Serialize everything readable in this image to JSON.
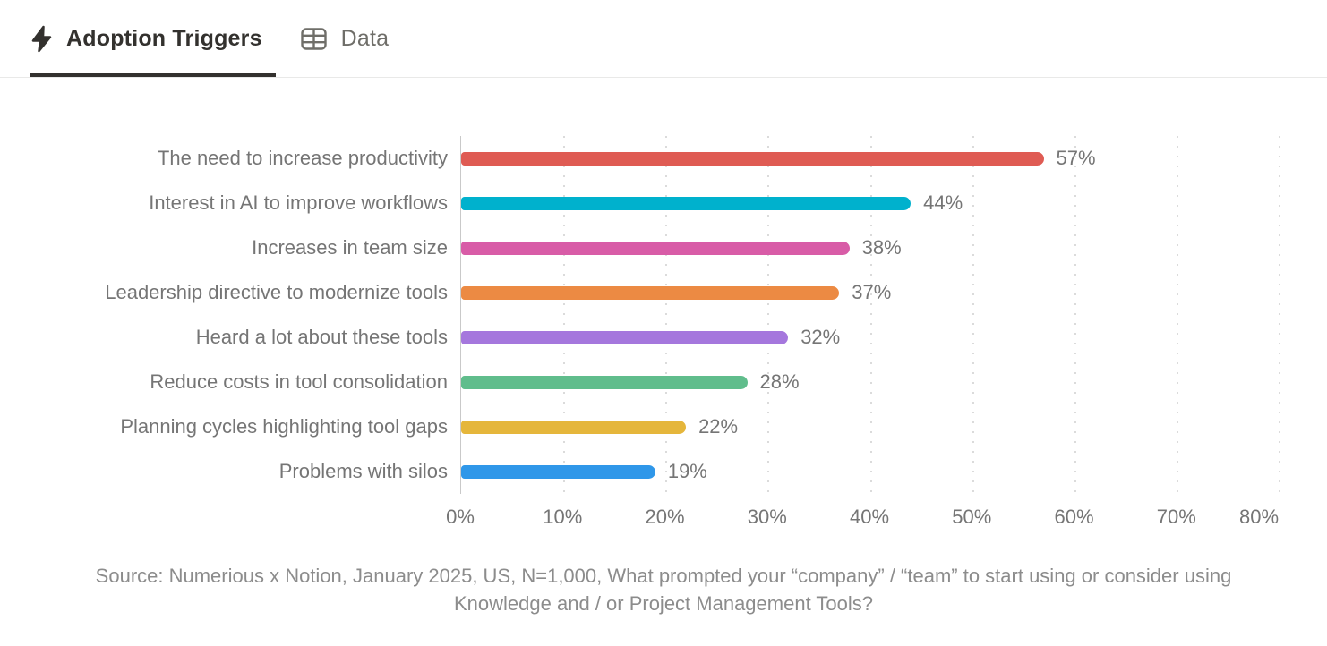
{
  "tab_bar": {
    "tabs": [
      {
        "label": "Adoption Triggers",
        "icon": "lightning-bolt-icon",
        "active": true
      },
      {
        "label": "Data",
        "icon": "table-icon",
        "active": false
      }
    ]
  },
  "chart_data": {
    "type": "bar",
    "orientation": "horizontal",
    "title": "Adoption Triggers",
    "categories": [
      "The need to increase productivity",
      "Interest in AI to improve workflows",
      "Increases in team size",
      "Leadership directive to modernize tools",
      "Heard a lot about these tools",
      "Reduce costs in tool consolidation",
      "Planning cycles highlighting tool gaps",
      "Problems with silos"
    ],
    "values": [
      57,
      44,
      38,
      37,
      32,
      28,
      22,
      19
    ],
    "value_labels": [
      "57%",
      "44%",
      "38%",
      "37%",
      "32%",
      "28%",
      "22%",
      "19%"
    ],
    "bar_colors": [
      "#DF5B53",
      "#00B1CD",
      "#D85CA7",
      "#EC8A43",
      "#A577DD",
      "#60BD8C",
      "#E5B63B",
      "#2F97E9"
    ],
    "xlabel": "",
    "ylabel": "",
    "xlim": [
      0,
      80
    ],
    "x_tick_labels": [
      "0%",
      "10%",
      "20%",
      "30%",
      "40%",
      "50%",
      "60%",
      "70%",
      "80%"
    ],
    "grid": "vertical-dotted",
    "legend": "none"
  },
  "source_note": "Source: Numerious x Notion, January 2025, US, N=1,000, What prompted your “company” / “team” to start using or consider using Knowledge and / or Project Management Tools?",
  "colors": {
    "active_tab_text": "#33312E",
    "inactive_tab_text": "#6F6E69",
    "active_tab_underline": "#33312E",
    "header_border": "#E9E9E8",
    "axis_line": "#C9C9C9",
    "gridline": "#DBDBDB",
    "label_text": "#757575",
    "source_text": "#8C8C8C"
  }
}
